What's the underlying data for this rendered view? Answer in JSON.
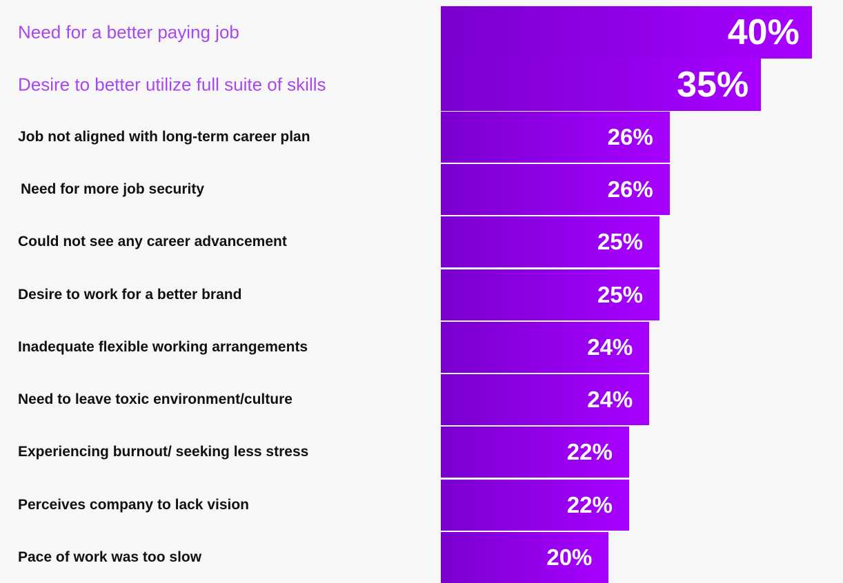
{
  "chart_data": {
    "type": "bar",
    "orientation": "horizontal",
    "categories": [
      "Need for a better paying job",
      "Desire to better utilize full suite of skills",
      "Job not aligned with  long-term career plan",
      "Need for more job security",
      "Could not see any career advancement",
      "Desire to work for a better brand",
      "Inadequate flexible working arrangements",
      "Need to leave toxic environment/culture",
      "Experiencing burnout/ seeking less stress",
      "Perceives company to lack vision",
      "Pace of work was too slow"
    ],
    "values": [
      40,
      35,
      26,
      26,
      25,
      25,
      24,
      24,
      22,
      22,
      20
    ],
    "value_labels": [
      "40%",
      "35%",
      "26%",
      "26%",
      "25%",
      "25%",
      "24%",
      "24%",
      "22%",
      "22%",
      "20%"
    ],
    "highlighted_categories": [
      0,
      1
    ],
    "unit": "%",
    "title": "",
    "xlabel": "",
    "ylabel": "",
    "xlim": [
      0,
      40
    ],
    "grid": false,
    "legend": "none",
    "colors": {
      "bar_start": "#7a00cf",
      "bar_end": "#a700ff",
      "highlight_label": "#a648f0",
      "label": "#111111",
      "value_label": "#ffffff",
      "background": "#f8f7f8"
    }
  }
}
